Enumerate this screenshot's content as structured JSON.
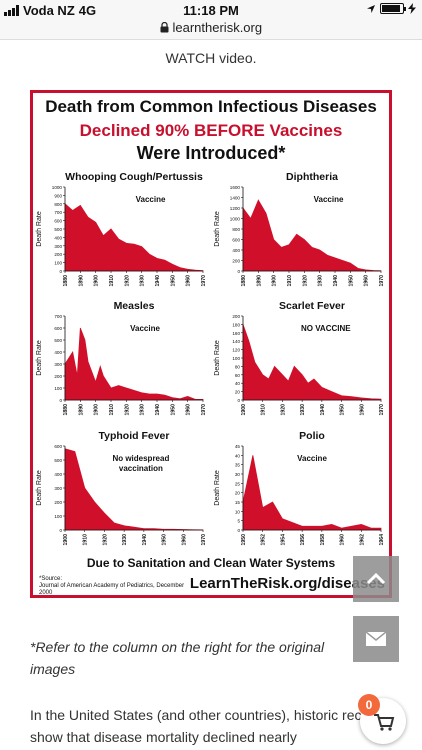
{
  "status_bar": {
    "carrier": "Voda NZ",
    "network": "4G",
    "time": "11:18 PM",
    "battery_level": 0.9,
    "icons": [
      "signal-icon",
      "location-arrow-icon",
      "charging-bolt-icon",
      "battery-icon"
    ]
  },
  "url_bar": {
    "url": "learntherisk.org",
    "icon": "lock-icon"
  },
  "watch_link": "WATCH video.",
  "poster": {
    "title_line1": "Death from Common Infectious Diseases",
    "title_line2": "Declined 90% BEFORE Vaccines",
    "title_line3": "Were Introduced*",
    "footer": "Due to Sanitation and Clean Water Systems",
    "source_label": "*Source:",
    "source_text": "Journal of American Academy of Pediatrics, December 2000",
    "brand": "LearnTheRisk.org/diseases",
    "colors": {
      "accent": "#c8102e",
      "fill": "#d0102a"
    }
  },
  "chart_data": [
    {
      "type": "area",
      "title": "Whooping Cough/Pertussis",
      "ylabel": "Death Rate",
      "x": [
        1880,
        1885,
        1890,
        1895,
        1900,
        1905,
        1910,
        1915,
        1920,
        1925,
        1930,
        1935,
        1940,
        1945,
        1950,
        1955,
        1960,
        1965,
        1970
      ],
      "values": [
        800,
        720,
        780,
        640,
        580,
        420,
        500,
        380,
        330,
        320,
        290,
        200,
        150,
        130,
        80,
        40,
        20,
        10,
        5
      ],
      "ylim": [
        0,
        1000
      ],
      "yticks": [
        0,
        100,
        200,
        300,
        400,
        500,
        600,
        700,
        800,
        900,
        1000
      ],
      "xticks": [
        1880,
        1890,
        1900,
        1910,
        1920,
        1930,
        1940,
        1950,
        1960,
        1970
      ],
      "annotation": "Vaccine"
    },
    {
      "type": "area",
      "title": "Diphtheria",
      "ylabel": "Death Rate",
      "x": [
        1880,
        1885,
        1890,
        1895,
        1900,
        1905,
        1910,
        1915,
        1920,
        1925,
        1930,
        1935,
        1940,
        1945,
        1950,
        1955,
        1960,
        1965,
        1970
      ],
      "values": [
        1200,
        1000,
        1350,
        1100,
        600,
        450,
        500,
        700,
        600,
        450,
        400,
        300,
        250,
        200,
        150,
        50,
        20,
        10,
        5
      ],
      "ylim": [
        0,
        1600
      ],
      "yticks": [
        0,
        200,
        400,
        600,
        800,
        1000,
        1200,
        1400,
        1600
      ],
      "xticks": [
        1880,
        1890,
        1900,
        1910,
        1920,
        1930,
        1940,
        1950,
        1960,
        1970
      ],
      "annotation": "Vaccine"
    },
    {
      "type": "area",
      "title": "Measles",
      "ylabel": "Death Rate",
      "x": [
        1880,
        1885,
        1888,
        1890,
        1893,
        1895,
        1900,
        1903,
        1905,
        1910,
        1915,
        1920,
        1925,
        1930,
        1935,
        1940,
        1945,
        1950,
        1955,
        1960,
        1965,
        1970
      ],
      "values": [
        300,
        400,
        200,
        600,
        500,
        320,
        150,
        280,
        200,
        100,
        120,
        100,
        80,
        60,
        50,
        50,
        40,
        20,
        10,
        30,
        5,
        5
      ],
      "ylim": [
        0,
        700
      ],
      "yticks": [
        0,
        100,
        200,
        300,
        400,
        500,
        600,
        700
      ],
      "xticks": [
        1880,
        1890,
        1900,
        1910,
        1920,
        1930,
        1940,
        1950,
        1960,
        1970
      ],
      "annotation": "Vaccine"
    },
    {
      "type": "area",
      "title": "Scarlet Fever",
      "ylabel": "Death Rate",
      "x": [
        1900,
        1903,
        1906,
        1910,
        1913,
        1916,
        1920,
        1923,
        1926,
        1930,
        1933,
        1936,
        1940,
        1945,
        1950,
        1955,
        1960,
        1965,
        1970
      ],
      "values": [
        180,
        140,
        90,
        60,
        50,
        80,
        60,
        45,
        80,
        60,
        40,
        50,
        30,
        20,
        10,
        8,
        5,
        3,
        2
      ],
      "ylim": [
        0,
        200
      ],
      "yticks": [
        0,
        20,
        40,
        60,
        80,
        100,
        120,
        140,
        160,
        180,
        200
      ],
      "xticks": [
        1900,
        1910,
        1920,
        1930,
        1940,
        1950,
        1960,
        1970
      ],
      "annotation": "NO VACCINE"
    },
    {
      "type": "area",
      "title": "Typhoid Fever",
      "ylabel": "Death Rate",
      "x": [
        1900,
        1905,
        1910,
        1915,
        1920,
        1925,
        1930,
        1935,
        1940,
        1945,
        1950,
        1955,
        1960,
        1965,
        1970
      ],
      "values": [
        580,
        560,
        300,
        200,
        120,
        50,
        30,
        20,
        10,
        10,
        5,
        5,
        3,
        2,
        1
      ],
      "ylim": [
        0,
        600
      ],
      "yticks": [
        0,
        100,
        200,
        300,
        400,
        500,
        600
      ],
      "xticks": [
        1900,
        1910,
        1920,
        1930,
        1940,
        1950,
        1960,
        1970
      ],
      "annotation": "No widespread vaccination"
    },
    {
      "type": "area",
      "title": "Polio",
      "ylabel": "Death Rate",
      "x": [
        1950,
        1951,
        1952,
        1953,
        1954,
        1955,
        1956,
        1957,
        1958,
        1959,
        1960,
        1961,
        1962,
        1963,
        1964
      ],
      "values": [
        15,
        40,
        12,
        15,
        6,
        4,
        2,
        2,
        2,
        3,
        1,
        2,
        3,
        1,
        1
      ],
      "ylim": [
        0,
        45
      ],
      "yticks": [
        0,
        5,
        10,
        15,
        20,
        25,
        30,
        35,
        40,
        45
      ],
      "xticks": [
        1950,
        1952,
        1954,
        1956,
        1958,
        1960,
        1962,
        1964
      ],
      "annotation": "Vaccine"
    }
  ],
  "caption": "*Refer to the column on the right for the original images",
  "body_text": "In the United States (and other countries), historic records show that disease mortality declined nearly",
  "floating": {
    "scroll_icon": "chevron-up-icon",
    "mail_icon": "envelope-icon",
    "cart_icon": "cart-icon",
    "cart_count": "0"
  }
}
